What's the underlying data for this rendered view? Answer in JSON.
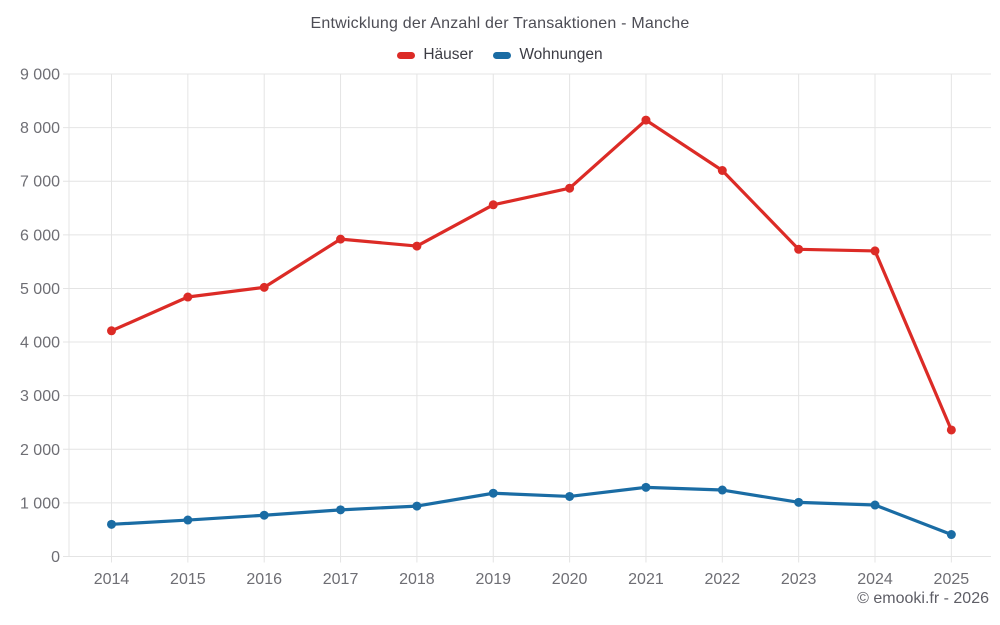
{
  "header": {
    "title": "Entwicklung der Anzahl der Transaktionen - Manche"
  },
  "legend": {
    "items": [
      {
        "label": "Häuser",
        "color": "#dc2b26"
      },
      {
        "label": "Wohnungen",
        "color": "#1a6ca4"
      }
    ]
  },
  "footer": {
    "credit": "© emooki.fr - 2026"
  },
  "chart_data": {
    "type": "line",
    "title": "Entwicklung der Anzahl der Transaktionen - Manche",
    "categories": [
      "2014",
      "2015",
      "2016",
      "2017",
      "2018",
      "2019",
      "2020",
      "2021",
      "2022",
      "2023",
      "2024",
      "2025"
    ],
    "series": [
      {
        "name": "Häuser",
        "color": "#dc2b26",
        "values": [
          4210,
          4840,
          5020,
          5920,
          5790,
          6560,
          6870,
          8140,
          7200,
          5730,
          5700,
          2360
        ]
      },
      {
        "name": "Wohnungen",
        "color": "#1a6ca4",
        "values": [
          600,
          680,
          770,
          870,
          940,
          1180,
          1120,
          1290,
          1240,
          1010,
          960,
          410
        ]
      }
    ],
    "xlabel": "",
    "ylabel": "",
    "ylim": [
      0,
      9000
    ],
    "ytick_step": 1000,
    "ytick_labels": [
      "0",
      "1 000",
      "2 000",
      "3 000",
      "4 000",
      "5 000",
      "6 000",
      "7 000",
      "8 000",
      "9 000"
    ],
    "grid": true,
    "grid_color": "#e4e4e4",
    "axis_text_color": "#6e6e74",
    "legend_position": "top",
    "marker": "circle",
    "marker_radius": 4.5,
    "line_width": 3.2
  }
}
